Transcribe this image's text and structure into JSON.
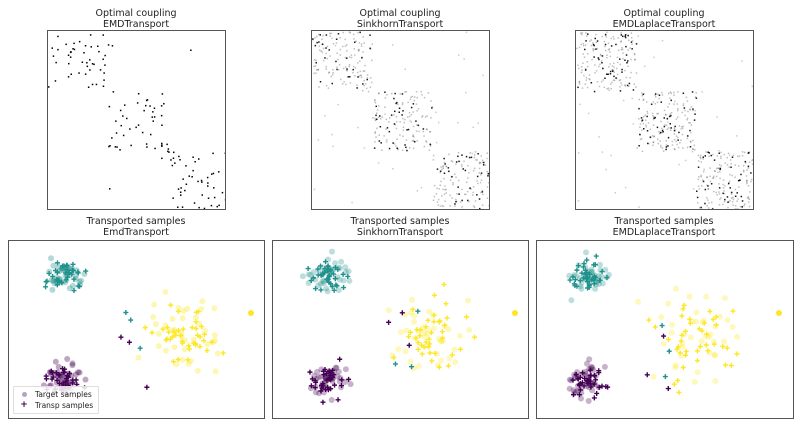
{
  "colors": {
    "purple": "#440154",
    "teal": "#21918c",
    "yellow": "#fde725",
    "frame": "#555555"
  },
  "chart_data": [
    {
      "type": "heatmap",
      "title": "Optimal coupling",
      "subtitle": "EMDTransport",
      "xlabel": "",
      "ylabel": "",
      "grid": false,
      "description": "Sparse block-diagonal coupling matrix with three blocks (top-left, center, bottom-right); black dots indicate nonzero entries"
    },
    {
      "type": "heatmap",
      "title": "Optimal coupling",
      "subtitle": "SinkhornTransport",
      "xlabel": "",
      "ylabel": "",
      "grid": false,
      "description": "Denser, blurred block-diagonal coupling matrix with three blocks"
    },
    {
      "type": "heatmap",
      "title": "Optimal coupling",
      "subtitle": "EMDLaplaceTransport",
      "xlabel": "",
      "ylabel": "",
      "grid": false,
      "description": "Diffuse block-diagonal coupling matrix with three blocks"
    },
    {
      "type": "scatter",
      "title": "Transported samples",
      "subtitle": "EmdTransport",
      "legend": [
        "Target samples",
        "Transp samples"
      ],
      "legend_position": "lower left",
      "clusters": [
        {
          "color": "teal",
          "center": [
            55,
            35
          ]
        },
        {
          "color": "purple",
          "center": [
            55,
            140
          ]
        },
        {
          "color": "yellow",
          "center": [
            170,
            90
          ]
        }
      ]
    },
    {
      "type": "scatter",
      "title": "Transported samples",
      "subtitle": "SinkhornTransport",
      "clusters": [
        {
          "color": "teal",
          "center": [
            55,
            35
          ]
        },
        {
          "color": "purple",
          "center": [
            55,
            140
          ]
        },
        {
          "color": "yellow",
          "center": [
            160,
            95
          ]
        }
      ]
    },
    {
      "type": "scatter",
      "title": "Transported samples",
      "subtitle": "EMDLaplaceTransport",
      "clusters": [
        {
          "color": "teal",
          "center": [
            50,
            35
          ]
        },
        {
          "color": "purple",
          "center": [
            50,
            140
          ]
        },
        {
          "color": "yellow",
          "center": [
            160,
            100
          ]
        }
      ]
    }
  ],
  "panels": {
    "top": [
      {
        "title": "Optimal coupling",
        "subtitle": "EMDTransport"
      },
      {
        "title": "Optimal coupling",
        "subtitle": "SinkhornTransport"
      },
      {
        "title": "Optimal coupling",
        "subtitle": "EMDLaplaceTransport"
      }
    ],
    "bottom": [
      {
        "title": "Transported samples",
        "subtitle": "EmdTransport"
      },
      {
        "title": "Transported samples",
        "subtitle": "SinkhornTransport"
      },
      {
        "title": "Transported samples",
        "subtitle": "EMDLaplaceTransport"
      }
    ]
  },
  "legend": {
    "target": "Target samples",
    "transp": "Transp samples"
  }
}
